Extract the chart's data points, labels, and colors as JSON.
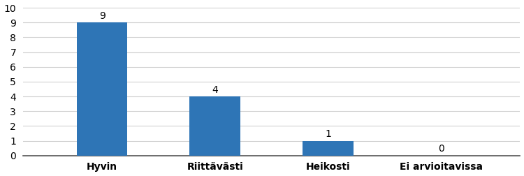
{
  "categories": [
    "Hyvin",
    "Riittävästi",
    "Heikosti",
    "Ei arvioitavissa"
  ],
  "values": [
    9,
    4,
    1,
    0
  ],
  "bar_color": "#2E75B6",
  "ylim": [
    0,
    10
  ],
  "yticks": [
    0,
    1,
    2,
    3,
    4,
    5,
    6,
    7,
    8,
    9,
    10
  ],
  "value_labels": [
    "9",
    "4",
    "1",
    "0"
  ],
  "background_color": "#ffffff",
  "grid_color": "#d0d0d0",
  "label_fontsize": 10,
  "tick_fontsize": 10,
  "bar_width": 0.45
}
